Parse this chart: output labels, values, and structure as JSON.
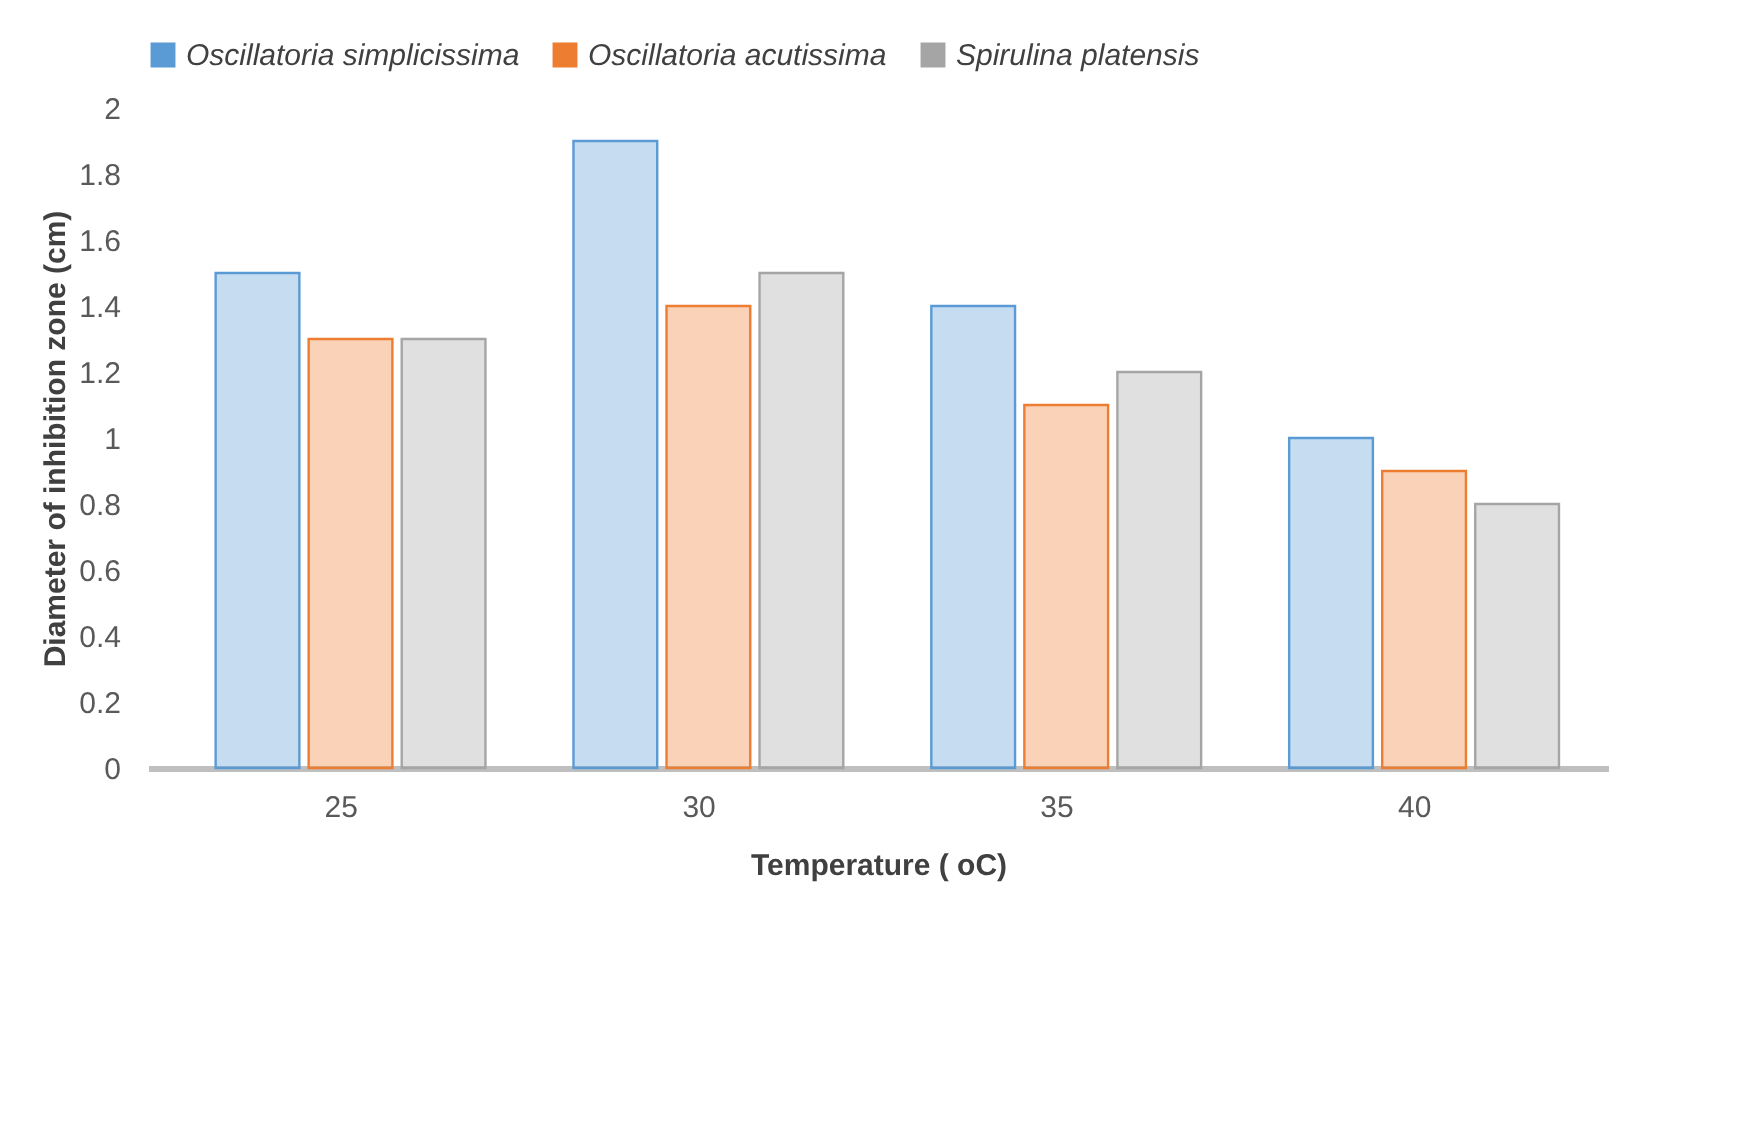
{
  "chart_data": {
    "type": "bar",
    "xlabel": "Temperature ( oC)",
    "ylabel": "Diameter of inhibition zone (cm)",
    "categories": [
      "25",
      "30",
      "35",
      "40"
    ],
    "series": [
      {
        "name": "Oscillatoria simplicissima",
        "color": "#5b9bd5",
        "values": [
          1.5,
          1.9,
          1.4,
          1.0
        ]
      },
      {
        "name": "Oscillatoria acutissima",
        "color": "#ed7d31",
        "values": [
          1.3,
          1.4,
          1.1,
          0.9
        ]
      },
      {
        "name": "Spirulina platensis",
        "color": "#a5a5a5",
        "values": [
          1.3,
          1.5,
          1.2,
          0.8
        ]
      }
    ],
    "ylim": [
      0,
      2
    ],
    "yticks": [
      0,
      0.2,
      0.4,
      0.6,
      0.8,
      1,
      1.2,
      1.4,
      1.6,
      1.8,
      2
    ],
    "grid": false,
    "legend": "top"
  }
}
